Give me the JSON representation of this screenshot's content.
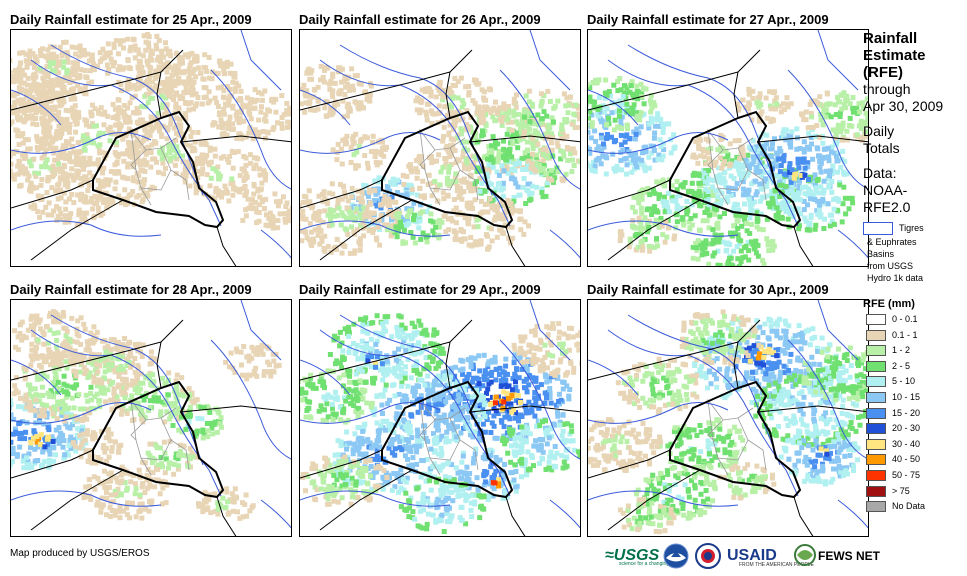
{
  "panels": [
    {
      "title": "Daily Rainfall estimate for 25 Apr., 2009",
      "col": 0,
      "row": 0,
      "rain": [
        [
          0.06,
          0.22,
          1,
          4
        ],
        [
          0.08,
          0.35,
          1,
          3
        ],
        [
          0.1,
          0.55,
          2,
          3
        ],
        [
          0.2,
          0.7,
          1,
          3
        ],
        [
          0.3,
          0.45,
          2,
          4
        ],
        [
          0.5,
          0.3,
          2,
          3
        ],
        [
          0.65,
          0.2,
          1,
          3
        ],
        [
          0.75,
          0.6,
          2,
          3
        ],
        [
          0.4,
          0.65,
          1,
          2
        ],
        [
          0.55,
          0.5,
          2,
          3
        ],
        [
          0.85,
          0.35,
          1,
          3
        ],
        [
          0.15,
          0.15,
          2,
          3
        ],
        [
          0.45,
          0.12,
          1,
          3
        ],
        [
          0.9,
          0.75,
          1,
          2
        ]
      ]
    },
    {
      "title": "Daily Rainfall estimate for 26 Apr., 2009",
      "col": 1,
      "row": 0,
      "rain": [
        [
          0.3,
          0.72,
          6,
          3
        ],
        [
          0.15,
          0.78,
          2,
          4
        ],
        [
          0.5,
          0.6,
          2,
          3
        ],
        [
          0.7,
          0.45,
          3,
          4
        ],
        [
          0.75,
          0.62,
          5,
          3
        ],
        [
          0.85,
          0.35,
          3,
          3
        ],
        [
          0.55,
          0.3,
          2,
          3
        ],
        [
          0.1,
          0.25,
          1,
          3
        ],
        [
          0.4,
          0.82,
          4,
          2
        ],
        [
          0.65,
          0.8,
          2,
          3
        ],
        [
          0.9,
          0.55,
          3,
          2
        ],
        [
          0.2,
          0.5,
          2,
          2
        ]
      ]
    },
    {
      "title": "Daily Rainfall estimate for 27 Apr., 2009",
      "col": 2,
      "row": 0,
      "rain": [
        [
          0.1,
          0.45,
          6,
          4
        ],
        [
          0.08,
          0.3,
          4,
          3
        ],
        [
          0.3,
          0.72,
          4,
          3
        ],
        [
          0.55,
          0.65,
          5,
          4
        ],
        [
          0.72,
          0.55,
          6,
          4
        ],
        [
          0.78,
          0.72,
          5,
          3
        ],
        [
          0.73,
          0.6,
          8,
          1
        ],
        [
          0.9,
          0.35,
          3,
          3
        ],
        [
          0.5,
          0.9,
          4,
          3
        ],
        [
          0.2,
          0.85,
          3,
          2
        ],
        [
          0.62,
          0.3,
          2,
          2
        ],
        [
          0.45,
          0.5,
          2,
          2
        ]
      ]
    },
    {
      "title": "Daily Rainfall estimate for 28 Apr., 2009",
      "col": 0,
      "row": 1,
      "rain": [
        [
          0.06,
          0.55,
          6,
          4
        ],
        [
          0.09,
          0.58,
          9,
          1
        ],
        [
          0.2,
          0.35,
          3,
          4
        ],
        [
          0.15,
          0.15,
          2,
          3
        ],
        [
          0.35,
          0.25,
          2,
          3
        ],
        [
          0.5,
          0.4,
          3,
          3
        ],
        [
          0.65,
          0.5,
          4,
          2
        ],
        [
          0.55,
          0.65,
          3,
          2
        ],
        [
          0.4,
          0.8,
          2,
          3
        ],
        [
          0.75,
          0.85,
          2,
          2
        ],
        [
          0.3,
          0.6,
          1,
          2
        ],
        [
          0.85,
          0.25,
          1,
          2
        ]
      ]
    },
    {
      "title": "Daily Rainfall estimate for 29 Apr., 2009",
      "col": 1,
      "row": 1,
      "rain": [
        [
          0.7,
          0.4,
          7,
          5
        ],
        [
          0.72,
          0.42,
          10,
          1.2
        ],
        [
          0.7,
          0.43,
          11,
          0.5
        ],
        [
          0.3,
          0.2,
          5,
          4
        ],
        [
          0.25,
          0.25,
          8,
          0.7
        ],
        [
          0.45,
          0.45,
          6,
          4
        ],
        [
          0.3,
          0.65,
          6,
          4
        ],
        [
          0.65,
          0.72,
          6,
          3
        ],
        [
          0.68,
          0.76,
          10,
          0.6
        ],
        [
          0.85,
          0.6,
          5,
          3
        ],
        [
          0.1,
          0.4,
          4,
          3
        ],
        [
          0.5,
          0.85,
          5,
          3
        ],
        [
          0.15,
          0.75,
          3,
          3
        ],
        [
          0.9,
          0.2,
          2,
          3
        ]
      ]
    },
    {
      "title": "Daily Rainfall estimate for 30 Apr., 2009",
      "col": 2,
      "row": 1,
      "rain": [
        [
          0.62,
          0.25,
          6,
          5
        ],
        [
          0.6,
          0.22,
          9,
          1.2
        ],
        [
          0.78,
          0.45,
          5,
          4
        ],
        [
          0.82,
          0.65,
          6,
          3
        ],
        [
          0.4,
          0.6,
          4,
          3
        ],
        [
          0.25,
          0.35,
          3,
          3
        ],
        [
          0.3,
          0.8,
          4,
          3
        ],
        [
          0.55,
          0.75,
          3,
          2
        ],
        [
          0.9,
          0.3,
          4,
          3
        ],
        [
          0.45,
          0.15,
          3,
          3
        ],
        [
          0.1,
          0.6,
          2,
          3
        ],
        [
          0.2,
          0.9,
          3,
          2
        ],
        [
          0.83,
          0.62,
          9,
          0.5
        ]
      ]
    }
  ],
  "sidebar": {
    "title_lines": [
      "Rainfall",
      "Estimate",
      "(RFE)"
    ],
    "through": "through",
    "through_date": "Apr 30, 2009",
    "daily": "Daily",
    "totals": "Totals",
    "data_label": "Data:",
    "data_source_1": "NOAA-",
    "data_source_2": "RFE2.0",
    "basin_label_1": "Tigres",
    "basin_label_lines": [
      "& Euphrates",
      "Basins",
      "from USGS",
      "Hydro 1k data"
    ]
  },
  "legend": {
    "title": "RFE (mm)",
    "classes": [
      {
        "label": "0 - 0.1",
        "color": "#ffffff"
      },
      {
        "label": "0.1 - 1",
        "color": "#e8d5b5"
      },
      {
        "label": "1 - 2",
        "color": "#b8f0a8"
      },
      {
        "label": "2 - 5",
        "color": "#70e070"
      },
      {
        "label": "5 - 10",
        "color": "#b0f0f0"
      },
      {
        "label": "10 - 15",
        "color": "#8cc8f4"
      },
      {
        "label": "15 - 20",
        "color": "#4a90f0"
      },
      {
        "label": "20 - 30",
        "color": "#2050d8"
      },
      {
        "label": "30 - 40",
        "color": "#ffe680"
      },
      {
        "label": "40 - 50",
        "color": "#ff9900"
      },
      {
        "label": "50 - 75",
        "color": "#ff3300"
      },
      {
        "label": "> 75",
        "color": "#a01010"
      },
      {
        "label": "No Data",
        "color": "#a8a8a8"
      }
    ]
  },
  "footer": {
    "credit": "Map produced by USGS/EROS",
    "logo_usgs": "≈USGS",
    "logo_usgs_tag": "science for a changing world",
    "logo_usaid": "USAID",
    "logo_usaid_tag": "FROM THE AMERICAN PEOPLE",
    "logo_fews": "FEWS NET"
  },
  "colors": {
    "border": "#000000",
    "basin": "#3b5bdb",
    "admin": "#999999"
  }
}
